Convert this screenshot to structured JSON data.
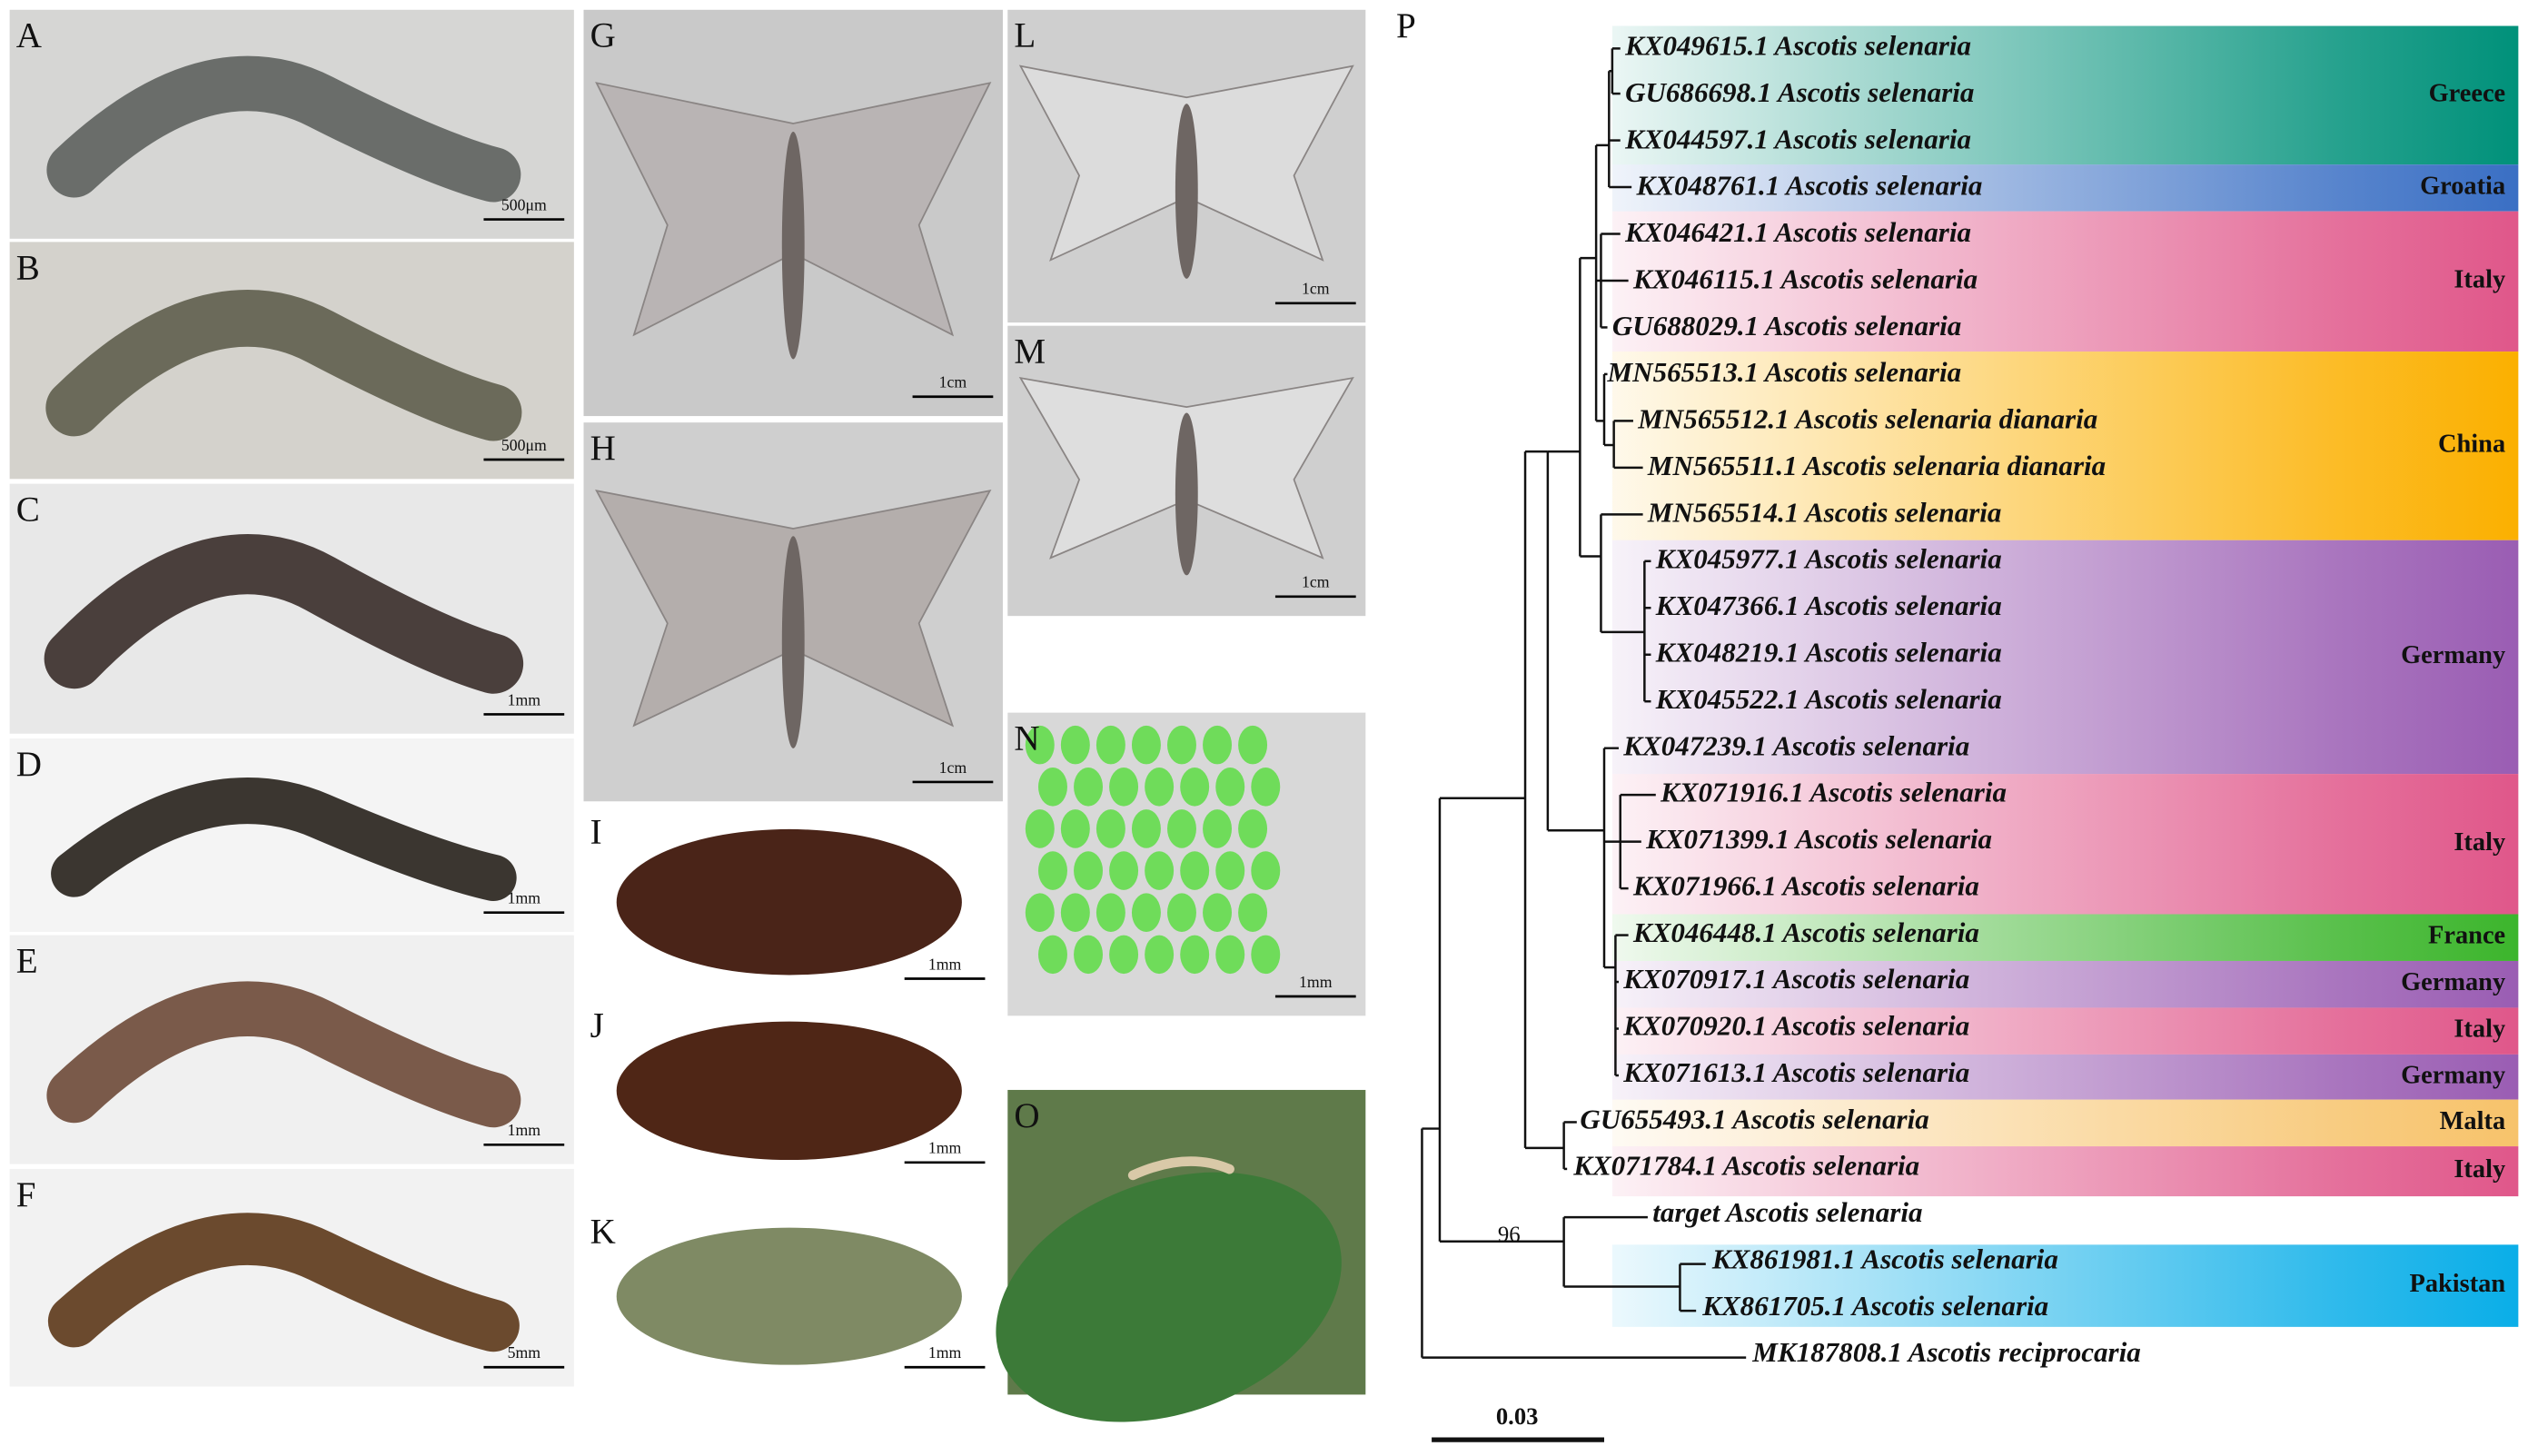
{
  "panels": [
    {
      "label": "A",
      "scale": "500μm"
    },
    {
      "label": "B",
      "scale": "500μm"
    },
    {
      "label": "C",
      "scale": "1mm"
    },
    {
      "label": "D",
      "scale": "1mm"
    },
    {
      "label": "E",
      "scale": "1mm"
    },
    {
      "label": "F",
      "scale": "5mm"
    },
    {
      "label": "G",
      "scale": "1cm"
    },
    {
      "label": "H",
      "scale": "1cm"
    },
    {
      "label": "I",
      "scale": "1mm"
    },
    {
      "label": "J",
      "scale": "1mm"
    },
    {
      "label": "K",
      "scale": "1mm"
    },
    {
      "label": "L",
      "scale": "1cm"
    },
    {
      "label": "M",
      "scale": "1cm"
    },
    {
      "label": "N",
      "scale": "1mm"
    },
    {
      "label": "O"
    }
  ],
  "tree": {
    "label": "P",
    "leaves": [
      "KX049615.1 Ascotis selenaria",
      "GU686698.1 Ascotis selenaria",
      "KX044597.1 Ascotis selenaria",
      "KX048761.1 Ascotis selenaria",
      "KX046421.1 Ascotis selenaria",
      "KX046115.1 Ascotis selenaria",
      "GU688029.1 Ascotis selenaria",
      "MN565513.1 Ascotis selenaria",
      "MN565512.1 Ascotis selenaria dianaria",
      "MN565511.1 Ascotis selenaria dianaria",
      "MN565514.1 Ascotis selenaria",
      "KX045977.1 Ascotis selenaria",
      "KX047366.1 Ascotis selenaria",
      "KX048219.1 Ascotis selenaria",
      "KX045522.1 Ascotis selenaria",
      "KX047239.1 Ascotis selenaria",
      "KX071916.1 Ascotis selenaria",
      "KX071399.1 Ascotis selenaria",
      "KX071966.1 Ascotis selenaria",
      "KX046448.1 Ascotis selenaria",
      "KX070917.1 Ascotis selenaria",
      "KX070920.1 Ascotis selenaria",
      "KX071613.1 Ascotis selenaria",
      "GU655493.1 Ascotis selenaria",
      "KX071784.1 Ascotis selenaria",
      "target Ascotis selenaria",
      "KX861981.1 Ascotis selenaria",
      "KX861705.1 Ascotis selenaria",
      "MK187808.1 Ascotis reciprocaria"
    ],
    "regions": [
      {
        "name": "Greece",
        "color": "#00917a"
      },
      {
        "name": "Groatia",
        "color": "#3a6fc4"
      },
      {
        "name": "Italy",
        "color": "#e0578a"
      },
      {
        "name": "China",
        "color": "#fbb000"
      },
      {
        "name": "Germany",
        "color": "#9a5db3"
      },
      {
        "name": "Italy",
        "color": "#e0578a"
      },
      {
        "name": "France",
        "color": "#3cb52c"
      },
      {
        "name": "Germany",
        "color": "#9a5db3"
      },
      {
        "name": "Italy",
        "color": "#e0578a"
      },
      {
        "name": "Germany",
        "color": "#9a5db3"
      },
      {
        "name": "Malta",
        "color": "#f7c36b"
      },
      {
        "name": "Italy",
        "color": "#e0578a"
      },
      {
        "name": "Pakistan",
        "color": "#0aaee8"
      }
    ],
    "target_color": "#e8294a",
    "bootstrap": "96",
    "scale_bar": "0.03"
  }
}
